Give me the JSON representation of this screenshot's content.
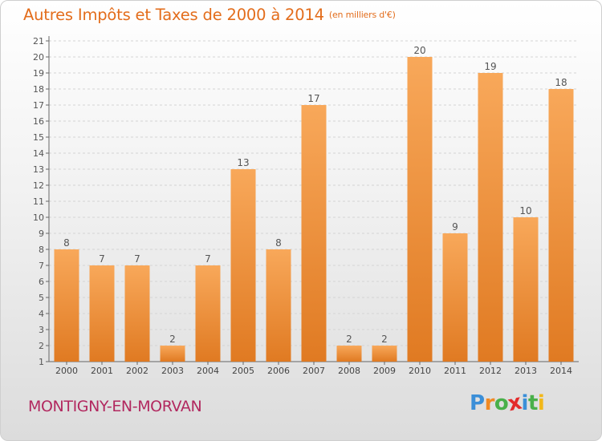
{
  "title": "Autres Impôts et Taxes de 2000 à 2014",
  "title_unit": "(en milliers d'€)",
  "commune": "MONTIGNY-EN-MORVAN",
  "logo": {
    "letters": [
      "P",
      "r",
      "o",
      "x",
      "i",
      "t",
      "i"
    ],
    "colors": [
      "#3b8fd8",
      "#f08a24",
      "#49b04a",
      "#e32b2b",
      "#3b8fd8",
      "#49b04a",
      "#f2b81a"
    ]
  },
  "colors": {
    "bar_light": "#f8a85a",
    "bar_dark": "#e07a22",
    "title": "#e36d1c",
    "commune": "#b2285f"
  },
  "chart_data": {
    "type": "bar",
    "categories": [
      "2000",
      "2001",
      "2002",
      "2003",
      "2004",
      "2005",
      "2006",
      "2007",
      "2008",
      "2009",
      "2010",
      "2011",
      "2012",
      "2013",
      "2014"
    ],
    "values": [
      8,
      7,
      7,
      2,
      7,
      13,
      8,
      17,
      2,
      2,
      20,
      9,
      19,
      10,
      18
    ],
    "data_labels": [
      "8",
      "7",
      "7",
      "2",
      "7",
      "13",
      "8",
      "17",
      "2",
      "2",
      "20",
      "9",
      "19",
      "10",
      "18"
    ],
    "ylim": [
      1,
      21
    ],
    "yticks": [
      "1",
      "2",
      "3",
      "4",
      "5",
      "6",
      "7",
      "8",
      "9",
      "10",
      "11",
      "12",
      "13",
      "14",
      "15",
      "16",
      "17",
      "18",
      "19",
      "20",
      "21"
    ],
    "grid": true
  }
}
